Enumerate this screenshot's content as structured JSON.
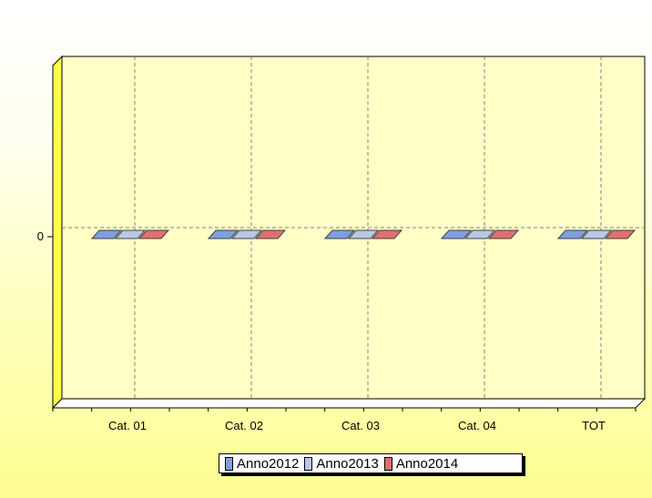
{
  "chart_data": {
    "type": "bar",
    "categories": [
      "Cat. 01",
      "Cat. 02",
      "Cat. 03",
      "Cat. 04",
      "TOT"
    ],
    "series": [
      {
        "name": "Anno2012",
        "values": [
          0,
          0,
          0,
          0,
          0
        ],
        "color": "#7f9fe0"
      },
      {
        "name": "Anno2013",
        "values": [
          0,
          0,
          0,
          0,
          0
        ],
        "color": "#b8c8e8"
      },
      {
        "name": "Anno2014",
        "values": [
          0,
          0,
          0,
          0,
          0
        ],
        "color": "#e07070"
      }
    ],
    "y_ticks": [
      0
    ],
    "ylim": [
      -1,
      1
    ],
    "grid": true,
    "legend_position": "bottom",
    "chart_style": "3d",
    "colors": {
      "wall": "#ffffc6",
      "wall_side": "#ffff44",
      "grid": "#808080",
      "axis": "#000000"
    }
  }
}
